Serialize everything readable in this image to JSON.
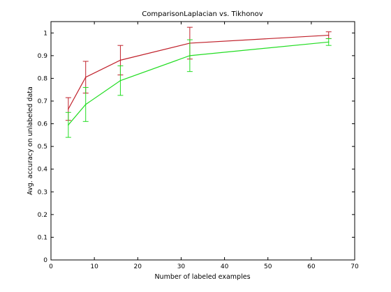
{
  "chart_data": {
    "type": "line",
    "title": "ComparisonLaplacian vs. Tikhonov",
    "xlabel": "Number of labeled examples",
    "ylabel": "Avg. accuracy on unlabeled data",
    "xlim": [
      0,
      70
    ],
    "ylim": [
      0,
      1.05
    ],
    "xticks": [
      0,
      10,
      20,
      30,
      40,
      50,
      60,
      70
    ],
    "yticks": [
      0,
      0.1,
      0.2,
      0.3,
      0.4,
      0.5,
      0.6,
      0.7,
      0.8,
      0.9,
      1
    ],
    "xtick_labels": [
      "0",
      "10",
      "20",
      "30",
      "40",
      "50",
      "60",
      "70"
    ],
    "ytick_labels": [
      "0",
      "0.1",
      "0.2",
      "0.3",
      "0.4",
      "0.5",
      "0.6",
      "0.7",
      "0.8",
      "0.9",
      "1"
    ],
    "grid": false,
    "x": [
      4,
      8,
      16,
      32,
      64
    ],
    "series": [
      {
        "color": "#c0202a",
        "values": [
          0.665,
          0.805,
          0.88,
          0.955,
          0.99
        ],
        "error": [
          0.05,
          0.07,
          0.065,
          0.07,
          0.015
        ]
      },
      {
        "color": "#22dd22",
        "values": [
          0.595,
          0.685,
          0.79,
          0.9,
          0.96
        ],
        "error": [
          0.055,
          0.075,
          0.065,
          0.07,
          0.015
        ]
      }
    ]
  }
}
